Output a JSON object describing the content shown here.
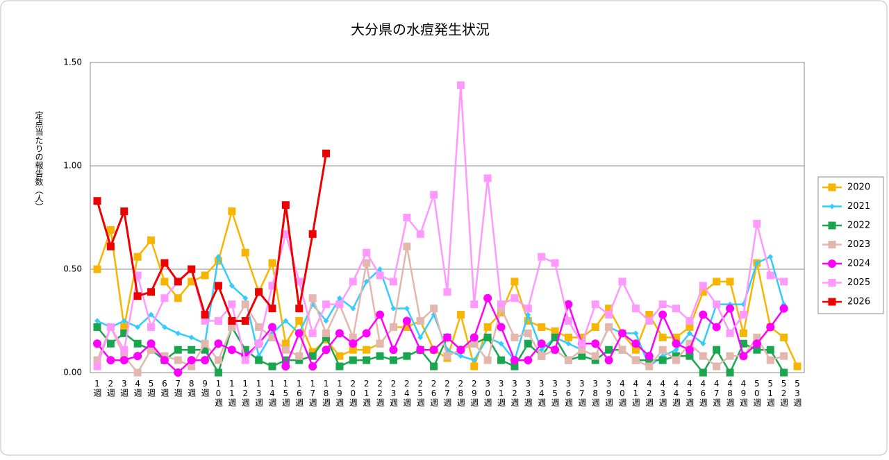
{
  "chart_data": {
    "type": "line",
    "title": "大分県の水痘発生状況",
    "y_label": "定点当たりの報告数（人）",
    "categories": [
      "1週",
      "2週",
      "3週",
      "4週",
      "5週",
      "6週",
      "7週",
      "8週",
      "9週",
      "10週",
      "11週",
      "12週",
      "13週",
      "14週",
      "15週",
      "16週",
      "17週",
      "18週",
      "19週",
      "20週",
      "21週",
      "22週",
      "23週",
      "24週",
      "25週",
      "26週",
      "27週",
      "28週",
      "29週",
      "30週",
      "31週",
      "32週",
      "33週",
      "34週",
      "35週",
      "36週",
      "37週",
      "38週",
      "39週",
      "40週",
      "41週",
      "42週",
      "43週",
      "44週",
      "45週",
      "46週",
      "47週",
      "48週",
      "49週",
      "50週",
      "51週",
      "52週",
      "53週"
    ],
    "ylim": [
      0,
      1.5
    ],
    "yticks": [
      {
        "value": 0,
        "label": "0.00"
      },
      {
        "value": 0.5,
        "label": "0.50"
      },
      {
        "value": 1,
        "label": "1.00"
      },
      {
        "value": 1.5,
        "label": "1.50"
      }
    ],
    "grid": true,
    "legend": "right",
    "series": [
      {
        "name": "2020",
        "color": "#f7b500",
        "marker": "square",
        "values": [
          0.5,
          0.69,
          0.22,
          0.56,
          0.64,
          0.44,
          0.36,
          0.44,
          0.47,
          0.54,
          0.78,
          0.58,
          0.39,
          0.53,
          0.14,
          0.25,
          0.1,
          0.16,
          0.08,
          0.11,
          0.11,
          0.14,
          0.22,
          0.22,
          0.25,
          0.11,
          0.07,
          0.28,
          0.03,
          0.22,
          0.29,
          0.44,
          0.25,
          0.22,
          0.2,
          0.17,
          0.17,
          0.22,
          0.31,
          0.19,
          0.11,
          0.28,
          0.17,
          0.17,
          0.22,
          0.39,
          0.44,
          0.44,
          0.19,
          0.53,
          0.22,
          0.17,
          0.03
        ]
      },
      {
        "name": "2021",
        "color": "#33ccff",
        "marker": "diamond",
        "values": [
          0.25,
          0.22,
          0.25,
          0.22,
          0.28,
          0.22,
          0.19,
          0.17,
          0.14,
          0.56,
          0.42,
          0.36,
          0.08,
          0.19,
          0.25,
          0.19,
          0.33,
          0.25,
          0.36,
          0.31,
          0.44,
          0.5,
          0.31,
          0.31,
          0.17,
          0.28,
          0.11,
          0.08,
          0.06,
          0.17,
          0.14,
          0.06,
          0.28,
          0.11,
          0.17,
          0.14,
          0.11,
          0.08,
          0.22,
          0.19,
          0.19,
          0.03,
          0.08,
          0.11,
          0.19,
          0.14,
          0.33,
          0.33,
          0.33,
          0.53,
          0.56,
          0.33,
          null
        ]
      },
      {
        "name": "2022",
        "color": "#1aa64f",
        "marker": "square",
        "values": [
          0.22,
          0.14,
          0.19,
          0.14,
          0.11,
          0.06,
          0.11,
          0.11,
          0.11,
          0,
          0.22,
          0.11,
          0.06,
          0.03,
          0.06,
          0.06,
          0.08,
          0.17,
          0.03,
          0.06,
          0.06,
          0.08,
          0.06,
          0.08,
          0.11,
          0.03,
          0.17,
          0.11,
          0.14,
          0.17,
          0.06,
          0.03,
          0.14,
          0.08,
          0.17,
          0.06,
          0.08,
          0.06,
          0.11,
          0.11,
          0.06,
          0.06,
          0.06,
          0.08,
          0.08,
          0,
          0.11,
          0,
          0.14,
          0.11,
          0.11,
          0,
          null
        ]
      },
      {
        "name": "2023",
        "color": "#e3b7ae",
        "marker": "square",
        "values": [
          0.06,
          0.22,
          0.08,
          0,
          0.11,
          0.08,
          0.06,
          0.03,
          0.14,
          0.06,
          0.22,
          0.33,
          0.22,
          0.17,
          0.11,
          0.08,
          0.36,
          0.19,
          0.33,
          0.17,
          0.53,
          0.14,
          0.22,
          0.61,
          0.25,
          0.31,
          0.08,
          0.11,
          0.14,
          0.06,
          0.31,
          0.17,
          0.19,
          0.08,
          0.11,
          0.06,
          0.11,
          0.08,
          0.22,
          0.11,
          0.06,
          0.03,
          0.11,
          0.06,
          0.14,
          0.08,
          0.03,
          0.08,
          0.08,
          0.17,
          0.06,
          0.08,
          null
        ]
      },
      {
        "name": "2024",
        "color": "#ff00ff",
        "marker": "circle",
        "values": [
          0.14,
          0.06,
          0.06,
          0.08,
          0.14,
          0.06,
          0,
          0.06,
          0.06,
          0.14,
          0.11,
          0.08,
          0.14,
          0.22,
          0.03,
          0.19,
          0.03,
          0.11,
          0.19,
          0.14,
          0.19,
          0.28,
          0.11,
          0.25,
          0.11,
          0.11,
          0.17,
          0.11,
          0.17,
          0.36,
          0.22,
          0.06,
          0.06,
          0.14,
          0.11,
          0.33,
          0.14,
          0.14,
          0.06,
          0.19,
          0.14,
          0.08,
          0.28,
          0.14,
          0.11,
          0.28,
          0.22,
          0.31,
          0.08,
          0.14,
          0.22,
          0.31,
          null
        ]
      },
      {
        "name": "2025",
        "color": "#ff99ff",
        "marker": "square",
        "values": [
          0.03,
          0.22,
          0.11,
          0.47,
          0.22,
          0.36,
          0.44,
          0.5,
          0.25,
          0.25,
          0.33,
          0.06,
          0.14,
          0.42,
          0.67,
          0.44,
          0.19,
          0.33,
          0.33,
          0.44,
          0.58,
          0.47,
          0.44,
          0.75,
          0.67,
          0.86,
          0.39,
          1.39,
          0.33,
          0.94,
          0.33,
          0.36,
          0.31,
          0.56,
          0.53,
          0.25,
          0.14,
          0.33,
          0.28,
          0.44,
          0.31,
          0.25,
          0.33,
          0.31,
          0.25,
          0.42,
          0.33,
          0.19,
          0.28,
          0.72,
          0.47,
          0.44,
          null
        ]
      },
      {
        "name": "2026",
        "color": "#ee0000",
        "marker": "square",
        "values": [
          0.83,
          0.61,
          0.78,
          0.37,
          0.39,
          0.53,
          0.44,
          0.5,
          0.28,
          0.42,
          0.25,
          0.25,
          0.39,
          0.31,
          0.81,
          0.31,
          0.67,
          1.06,
          null,
          null,
          null,
          null,
          null,
          null,
          null,
          null,
          null,
          null,
          null,
          null,
          null,
          null,
          null,
          null,
          null,
          null,
          null,
          null,
          null,
          null,
          null,
          null,
          null,
          null,
          null,
          null,
          null,
          null,
          null,
          null,
          null,
          null,
          null
        ]
      }
    ]
  }
}
